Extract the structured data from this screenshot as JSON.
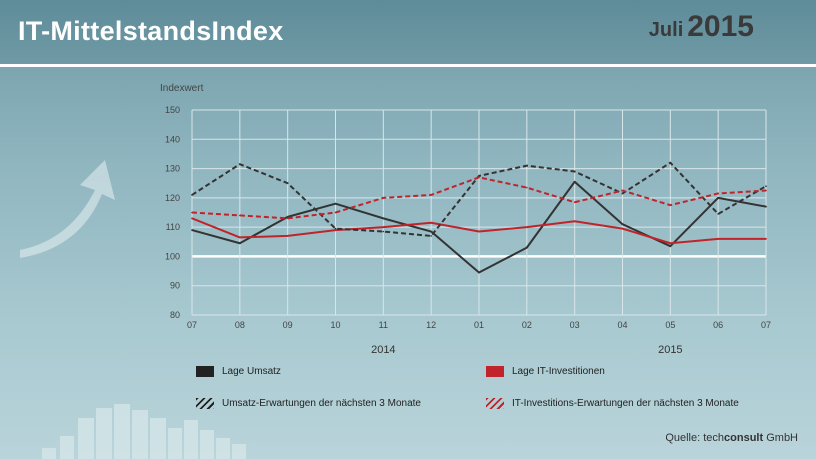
{
  "header": {
    "title": "IT-MittelstandsIndex",
    "month": "Juli",
    "year": "2015"
  },
  "colors": {
    "series_dark": "#333333",
    "series_red": "#c0242a",
    "grid": "#d8e6ea"
  },
  "chart_data": {
    "type": "line",
    "ylabel": "Indexwert",
    "ylim": [
      80,
      150
    ],
    "yticks": [
      80,
      90,
      100,
      110,
      120,
      130,
      140,
      150
    ],
    "reference_line": 100,
    "categories": [
      "07",
      "08",
      "09",
      "10",
      "11",
      "12",
      "01",
      "02",
      "03",
      "04",
      "05",
      "06",
      "07"
    ],
    "year_labels": [
      {
        "text": "2014",
        "at_index": 4
      },
      {
        "text": "2015",
        "at_index": 10
      }
    ],
    "grid": true,
    "legend_position": "bottom",
    "series": [
      {
        "name": "Lage Umsatz",
        "color": "#333333",
        "dashed": false,
        "values": [
          109,
          104.5,
          113.5,
          118,
          113,
          108.5,
          94.5,
          103,
          125.5,
          111,
          103.5,
          120,
          117
        ]
      },
      {
        "name": "Lage IT-Investitionen",
        "color": "#c0242a",
        "dashed": false,
        "values": [
          113,
          106.5,
          107,
          109,
          110,
          111.5,
          108.5,
          110,
          112,
          109.5,
          104.5,
          106,
          106
        ]
      },
      {
        "name": "Umsatz-Erwartungen  der nächsten 3 Monate",
        "color": "#333333",
        "dashed": true,
        "values": [
          121,
          131.5,
          125,
          109.5,
          108.5,
          107,
          127.5,
          131,
          129,
          121.5,
          132,
          114.5,
          124
        ]
      },
      {
        "name": "IT-Investitions-Erwartungen der nächsten 3 Monate",
        "color": "#c0242a",
        "dashed": true,
        "values": [
          115,
          114,
          113,
          115,
          120,
          121,
          127,
          123.5,
          118.5,
          122.5,
          117.5,
          121.5,
          122.5
        ]
      }
    ]
  },
  "legend": {
    "items": [
      {
        "label": "Lage Umsatz"
      },
      {
        "label": "Lage IT-Investitionen"
      },
      {
        "label": "Umsatz-Erwartungen  der nächsten 3 Monate"
      },
      {
        "label": "IT-Investitions-Erwartungen der nächsten 3 Monate"
      }
    ]
  },
  "source": {
    "prefix": "Quelle:",
    "brand_tech": "tech",
    "brand_consult": "consult",
    "suffix": "GmbH"
  }
}
